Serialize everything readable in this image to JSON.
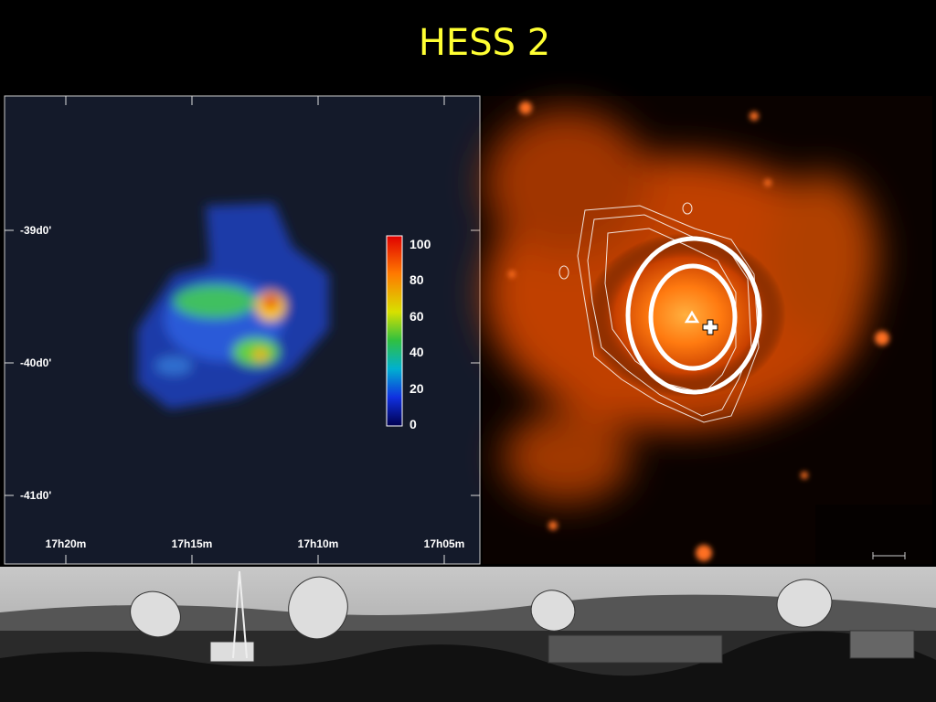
{
  "title": "HESS 2",
  "sky_map": {
    "y_labels": [
      "-39d0'",
      "-40d0'",
      "-41d0'"
    ],
    "x_labels": [
      "17h20m",
      "17h15m",
      "17h10m",
      "17h05m"
    ],
    "colorbar_labels": [
      100,
      80,
      60,
      40,
      20,
      0
    ]
  }
}
